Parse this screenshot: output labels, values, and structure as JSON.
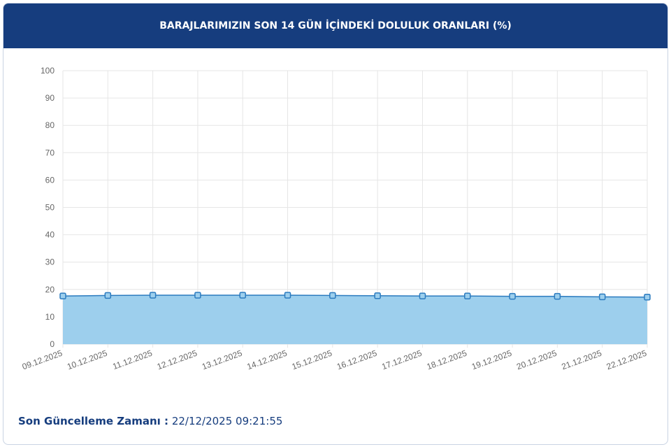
{
  "chart_data": {
    "type": "area",
    "title": "BARAJLARIMIZIN SON 14 GÜN İÇİNDEKİ DOLULUK ORANLARI (%)",
    "categories": [
      "09.12.2025",
      "10.12.2025",
      "11.12.2025",
      "12.12.2025",
      "13.12.2025",
      "14.12.2025",
      "15.12.2025",
      "16.12.2025",
      "17.12.2025",
      "18.12.2025",
      "19.12.2025",
      "20.12.2025",
      "21.12.2025",
      "22.12.2025"
    ],
    "values": [
      17.6,
      17.8,
      17.9,
      17.9,
      17.9,
      17.9,
      17.8,
      17.7,
      17.6,
      17.6,
      17.5,
      17.5,
      17.3,
      17.2
    ],
    "color": "#2b7bbf",
    "fill": "#9dcfed",
    "ylim": [
      0,
      100
    ],
    "yticks": [
      0,
      10,
      20,
      30,
      40,
      50,
      60,
      70,
      80,
      90,
      100
    ],
    "grid": true
  },
  "footer": {
    "label": "Son Güncelleme Zamanı :",
    "time": "22/12/2025 09:21:55"
  }
}
